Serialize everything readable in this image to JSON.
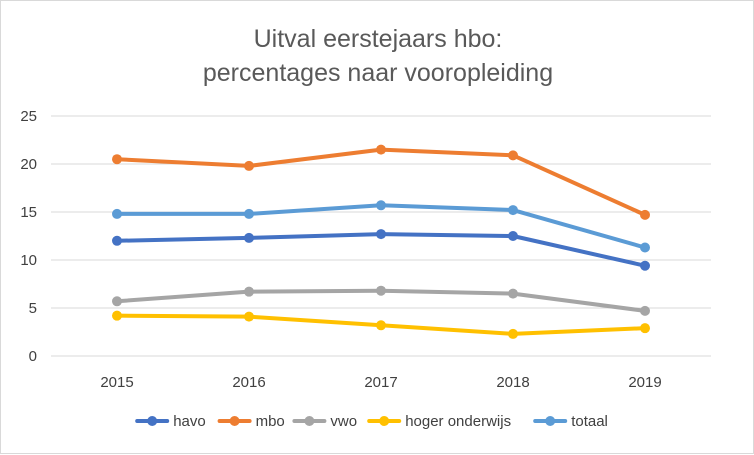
{
  "chart_data": {
    "type": "line",
    "title_lines": [
      "Uitval eerstejaars hbo:",
      "percentages naar vooropleiding"
    ],
    "xlabel": "",
    "ylabel": "",
    "x": [
      "2015",
      "2016",
      "2017",
      "2018",
      "2019"
    ],
    "ylim": [
      0,
      25
    ],
    "yticks": [
      0,
      5,
      10,
      15,
      20,
      25
    ],
    "grid": true,
    "legend_position": "bottom",
    "series": [
      {
        "name": "havo",
        "color": "#4472C4",
        "values": [
          12.0,
          12.3,
          12.7,
          12.5,
          9.4
        ]
      },
      {
        "name": "mbo",
        "color": "#ED7D31",
        "values": [
          20.5,
          19.8,
          21.5,
          20.9,
          14.7
        ]
      },
      {
        "name": "vwo",
        "color": "#A5A5A5",
        "values": [
          5.7,
          6.7,
          6.8,
          6.5,
          4.7
        ]
      },
      {
        "name": "hoger onderwijs",
        "color": "#FFC000",
        "values": [
          4.2,
          4.1,
          3.2,
          2.3,
          2.9
        ]
      },
      {
        "name": "totaal",
        "color": "#5B9BD5",
        "values": [
          14.8,
          14.8,
          15.7,
          15.2,
          11.3
        ]
      }
    ]
  }
}
